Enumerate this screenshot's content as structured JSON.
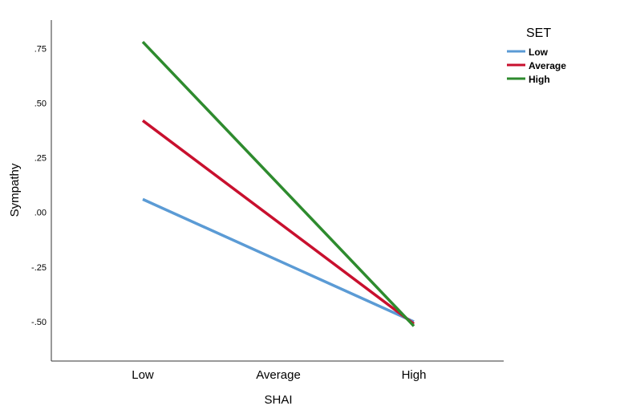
{
  "chart_data": {
    "type": "line",
    "categories": [
      "Low",
      "Average",
      "High"
    ],
    "x_positions": [
      0,
      2
    ],
    "series": [
      {
        "name": "Low",
        "color": "#5b9bd5",
        "points": [
          {
            "x": "Low",
            "y": 0.06
          },
          {
            "x": "High",
            "y": -0.5
          }
        ]
      },
      {
        "name": "Average",
        "color": "#c8102e",
        "points": [
          {
            "x": "Low",
            "y": 0.42
          },
          {
            "x": "High",
            "y": -0.51
          }
        ]
      },
      {
        "name": "High",
        "color": "#2e8b2e",
        "points": [
          {
            "x": "Low",
            "y": 0.78
          },
          {
            "x": "High",
            "y": -0.52
          }
        ]
      }
    ],
    "yticks": [
      ".75",
      ".50",
      ".25",
      ".00",
      "-.25",
      "-.50"
    ],
    "ytick_values": [
      0.75,
      0.5,
      0.25,
      0,
      -0.25,
      -0.5
    ],
    "xlabel": "SHAI",
    "ylabel": "Sympathy",
    "ylim": [
      -0.68,
      0.88
    ],
    "legend": {
      "title": "SET",
      "position": "top-right"
    },
    "grid": false
  }
}
